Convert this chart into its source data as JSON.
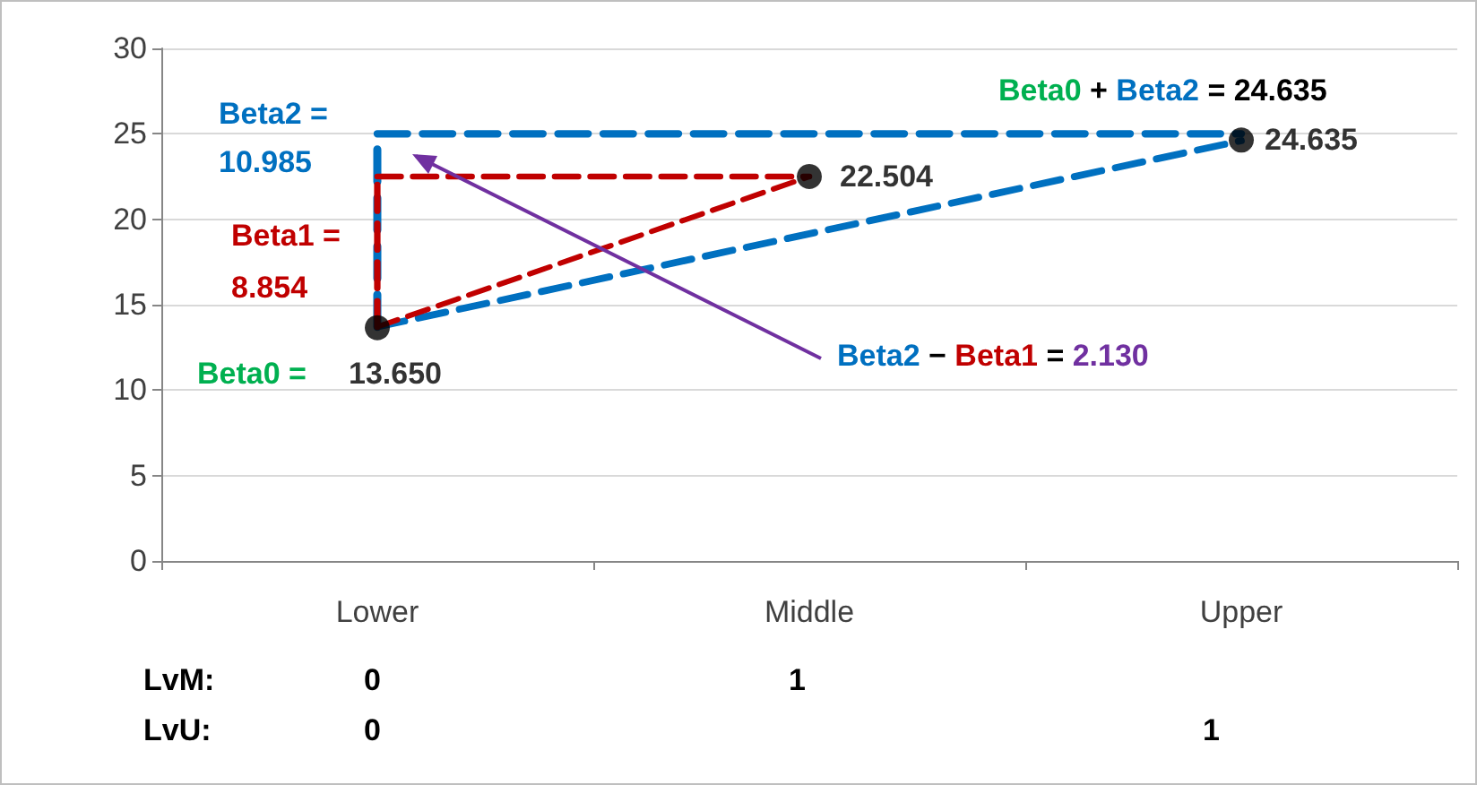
{
  "chart_data": {
    "type": "scatter",
    "categories": [
      "Lower",
      "Middle",
      "Upper"
    ],
    "ylim": [
      0,
      30
    ],
    "yticks": [
      0,
      5,
      10,
      15,
      20,
      25,
      30
    ],
    "grid": "y",
    "series": [
      {
        "type": "line",
        "line_style": "dashed",
        "marker": "none",
        "color": "#c00000",
        "x": [
          "Lower",
          "Middle"
        ],
        "values": [
          13.7,
          22.5
        ]
      },
      {
        "type": "line",
        "line_style": "dashed",
        "marker": "none",
        "color": "#c00000",
        "x": [
          "Lower",
          "Middle"
        ],
        "values": [
          22.5,
          22.5
        ]
      },
      {
        "type": "line",
        "line_style": "dashed",
        "marker": "none",
        "color": "#c00000",
        "x": [
          "Lower",
          "Lower"
        ],
        "values": [
          13.7,
          22.5
        ]
      },
      {
        "type": "line",
        "line_style": "dashed",
        "marker": "none",
        "color": "#0070c0",
        "x": [
          "Lower",
          "Upper"
        ],
        "values": [
          13.7,
          24.6
        ]
      },
      {
        "type": "line",
        "line_style": "dashed",
        "marker": "none",
        "color": "#0070c0",
        "x": [
          "Lower",
          "Upper"
        ],
        "values": [
          25,
          25
        ]
      },
      {
        "type": "line",
        "line_style": "dashed",
        "marker": "none",
        "color": "#0070c0",
        "x": [
          "Lower",
          "Lower"
        ],
        "values": [
          13.7,
          25
        ]
      },
      {
        "marker": "circle",
        "color": "#000000",
        "values": [
          13.65,
          22.504,
          24.635
        ],
        "value_labels": [
          "13.650",
          "22.504",
          "24.635"
        ]
      }
    ],
    "annotations": [
      "Beta2 =",
      "10.985",
      "Beta1 =",
      "8.854",
      "Beta0 =",
      "Beta0",
      "+",
      "Beta2",
      "= 24.635",
      "Beta2",
      "−",
      "Beta1",
      "=",
      "2.130",
      "LvM:",
      "0",
      "1",
      "LvU:",
      "0",
      "1"
    ]
  }
}
